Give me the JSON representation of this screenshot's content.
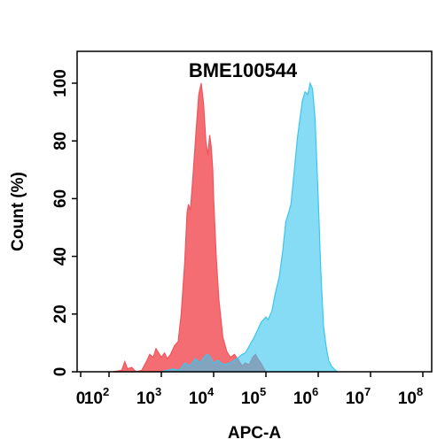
{
  "chart_data": {
    "type": "area",
    "title": "BME100544",
    "xlabel": "APC-A",
    "ylabel": "Count  (%)",
    "x_scale": "log",
    "xlim": [
      0,
      100000000
    ],
    "ylim": [
      0,
      105
    ],
    "x_ticks": [
      {
        "base": "0",
        "exp": ""
      },
      {
        "base": "10",
        "exp": "2"
      },
      {
        "base": "10",
        "exp": "3"
      },
      {
        "base": "10",
        "exp": "4"
      },
      {
        "base": "10",
        "exp": "5"
      },
      {
        "base": "10",
        "exp": "6"
      },
      {
        "base": "10",
        "exp": "7"
      },
      {
        "base": "10",
        "exp": "8"
      }
    ],
    "y_ticks": [
      "0",
      "20",
      "40",
      "60",
      "80",
      "100"
    ],
    "legend": "none",
    "grid": false,
    "series": [
      {
        "color": "#f2545b",
        "fill_opacity": 0.85,
        "points": [
          [
            120,
            0
          ],
          [
            175,
            0.5
          ],
          [
            200,
            3.5
          ],
          [
            225,
            1
          ],
          [
            270,
            1.5
          ],
          [
            330,
            0
          ],
          [
            420,
            0.5
          ],
          [
            520,
            3.5
          ],
          [
            600,
            6
          ],
          [
            700,
            5
          ],
          [
            790,
            8
          ],
          [
            890,
            6.5
          ],
          [
            1000,
            5
          ],
          [
            1150,
            6.5
          ],
          [
            1300,
            4.5
          ],
          [
            1500,
            6
          ],
          [
            1780,
            9
          ],
          [
            2100,
            10.5
          ],
          [
            2400,
            20
          ],
          [
            2800,
            38
          ],
          [
            3100,
            55
          ],
          [
            3300,
            58
          ],
          [
            3600,
            56
          ],
          [
            4000,
            67
          ],
          [
            4600,
            83
          ],
          [
            5200,
            96
          ],
          [
            5800,
            100
          ],
          [
            6400,
            93
          ],
          [
            7100,
            80
          ],
          [
            7800,
            75
          ],
          [
            8400,
            82
          ],
          [
            9000,
            78
          ],
          [
            9600,
            70
          ],
          [
            10000,
            60
          ],
          [
            11200,
            40
          ],
          [
            12600,
            25
          ],
          [
            15000,
            12
          ],
          [
            17800,
            7
          ],
          [
            21000,
            5
          ],
          [
            25000,
            6
          ],
          [
            30000,
            4
          ],
          [
            35000,
            2
          ],
          [
            40000,
            3
          ],
          [
            48000,
            2.5
          ],
          [
            56000,
            5
          ],
          [
            63000,
            6
          ],
          [
            70000,
            4.5
          ],
          [
            80000,
            3
          ],
          [
            92000,
            1
          ],
          [
            100000,
            0
          ]
        ]
      },
      {
        "color": "#3cc6ee",
        "fill_opacity": 0.62,
        "points": [
          [
            1000,
            0
          ],
          [
            1700,
            1
          ],
          [
            2200,
            0.5
          ],
          [
            2800,
            3
          ],
          [
            3500,
            2
          ],
          [
            4500,
            4.5
          ],
          [
            5500,
            3
          ],
          [
            6500,
            5
          ],
          [
            7500,
            6
          ],
          [
            8300,
            5.5
          ],
          [
            10000,
            3
          ],
          [
            12000,
            4
          ],
          [
            14000,
            3
          ],
          [
            16000,
            2.5
          ],
          [
            20000,
            3
          ],
          [
            25000,
            4
          ],
          [
            30000,
            5
          ],
          [
            35000,
            6
          ],
          [
            40000,
            6.5
          ],
          [
            45000,
            8
          ],
          [
            50000,
            9.5
          ],
          [
            60000,
            12
          ],
          [
            80000,
            17
          ],
          [
            100000,
            19
          ],
          [
            110000,
            18
          ],
          [
            130000,
            21
          ],
          [
            150000,
            27
          ],
          [
            180000,
            33
          ],
          [
            210000,
            42
          ],
          [
            240000,
            52
          ],
          [
            270000,
            55
          ],
          [
            300000,
            58
          ],
          [
            350000,
            70
          ],
          [
            400000,
            81
          ],
          [
            450000,
            88
          ],
          [
            500000,
            94
          ],
          [
            560000,
            97
          ],
          [
            630000,
            96
          ],
          [
            700000,
            100
          ],
          [
            780000,
            98
          ],
          [
            870000,
            88
          ],
          [
            1000000,
            60
          ],
          [
            1120000,
            35
          ],
          [
            1260000,
            16
          ],
          [
            1410000,
            9
          ],
          [
            1580000,
            4
          ],
          [
            1780000,
            2
          ],
          [
            2000000,
            1
          ],
          [
            2300000,
            0
          ]
        ]
      }
    ]
  }
}
